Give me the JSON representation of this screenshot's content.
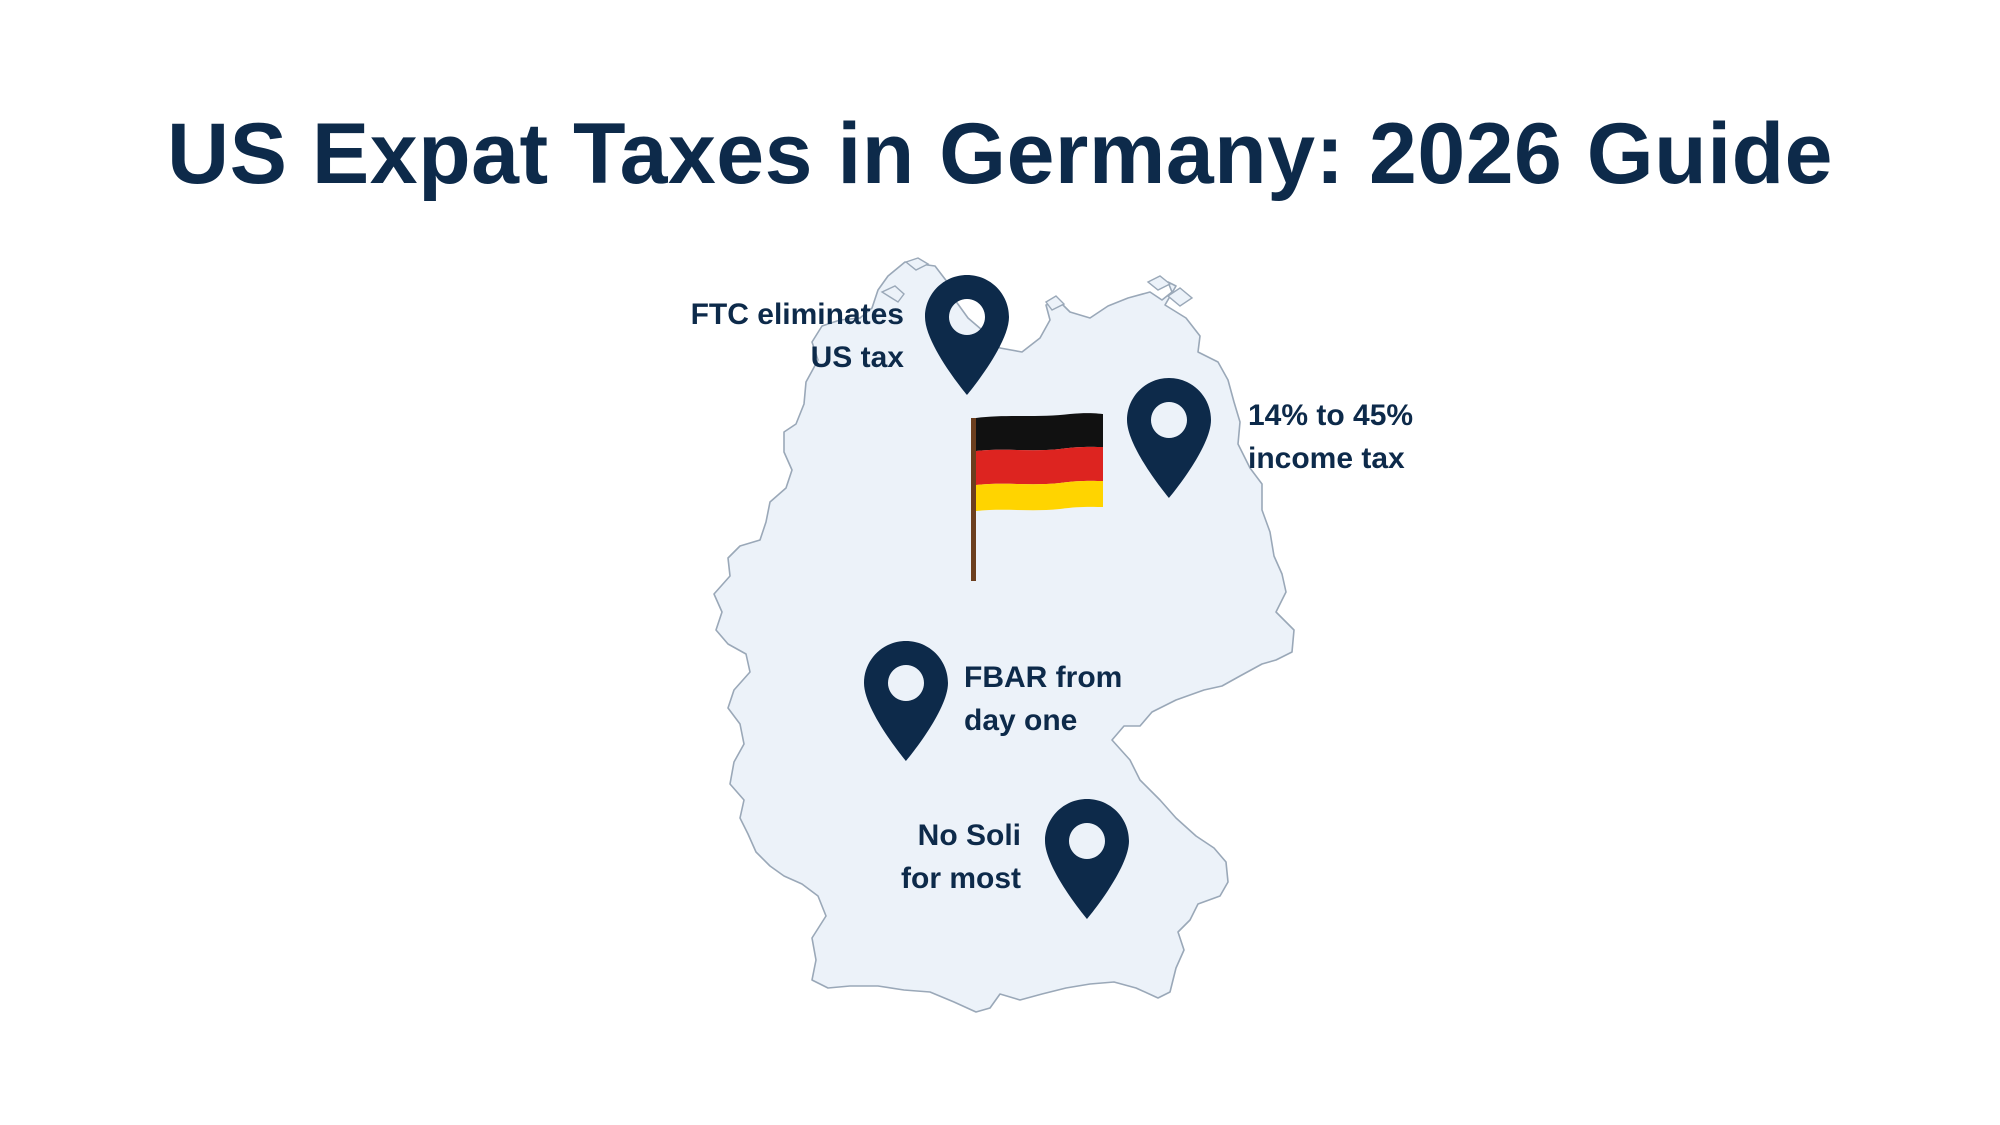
{
  "title": "US Expat Taxes in Germany: 2026 Guide",
  "colors": {
    "title": "#0d2a4a",
    "pin": "#0d2a4a",
    "map_fill": "#ecf2f9",
    "map_stroke": "#9aa8b8",
    "flag_black": "#111111",
    "flag_red": "#dd2420",
    "flag_gold": "#ffd400",
    "flag_pole": "#6b3e1e"
  },
  "callouts": [
    {
      "line1": "FTC eliminates",
      "line2": "US tax",
      "icon": "map-pin-icon"
    },
    {
      "line1": "14% to 45%",
      "line2": "income tax",
      "icon": "map-pin-icon"
    },
    {
      "line1": "FBAR from",
      "line2": "day one",
      "icon": "map-pin-icon"
    },
    {
      "line1": "No Soli",
      "line2": "for most",
      "icon": "map-pin-icon"
    }
  ],
  "flag_icon": "germany-flag-icon",
  "map_icon": "germany-map-outline"
}
